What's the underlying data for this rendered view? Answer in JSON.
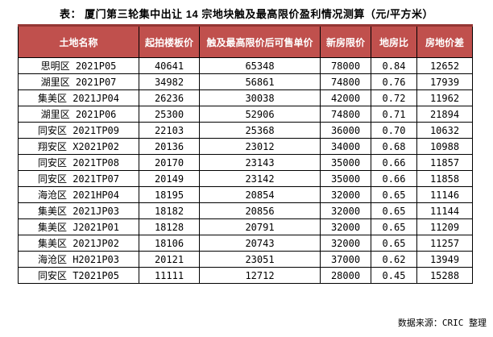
{
  "colors": {
    "header_bg": "#c0504d",
    "header_text": "#ffffff",
    "table_top_border": "#943634",
    "grid_border": "#000000",
    "text": "#000000"
  },
  "chart_data": {
    "type": "table",
    "title": "表： 厦门第三轮集中出让 14 宗地块触及最高限价盈利情况测算（元/平方米）",
    "unit": "元/平方米",
    "source": "数据来源：CRIC 整理",
    "columns": [
      "土地名称",
      "起拍楼板价",
      "触及最高限价后可售单价",
      "新房限价",
      "地房比",
      "房地价差"
    ],
    "rows": [
      [
        "思明区 2021P05",
        "40641",
        "65348",
        "78000",
        "0.84",
        "12652"
      ],
      [
        "湖里区 2021P07",
        "34982",
        "56861",
        "74800",
        "0.76",
        "17939"
      ],
      [
        "集美区 2021JP04",
        "26236",
        "30038",
        "42000",
        "0.72",
        "11962"
      ],
      [
        "湖里区 2021P06",
        "25300",
        "52906",
        "74800",
        "0.71",
        "21894"
      ],
      [
        "同安区 2021TP09",
        "22103",
        "25368",
        "36000",
        "0.70",
        "10632"
      ],
      [
        "翔安区 X2021P02",
        "20136",
        "23012",
        "34000",
        "0.68",
        "10988"
      ],
      [
        "同安区 2021TP08",
        "20170",
        "23143",
        "35000",
        "0.66",
        "11857"
      ],
      [
        "同安区 2021TP07",
        "20149",
        "23142",
        "35000",
        "0.66",
        "11858"
      ],
      [
        "海沧区 2021HP04",
        "18195",
        "20854",
        "32000",
        "0.65",
        "11146"
      ],
      [
        "集美区 2021JP03",
        "18182",
        "20856",
        "32000",
        "0.65",
        "11144"
      ],
      [
        "集美区 J2021P01",
        "18128",
        "20791",
        "32000",
        "0.65",
        "11209"
      ],
      [
        "集美区 2021JP02",
        "18106",
        "20743",
        "32000",
        "0.65",
        "11257"
      ],
      [
        "海沧区 H2021P03",
        "20121",
        "23051",
        "37000",
        "0.62",
        "13949"
      ],
      [
        "同安区 T2021P05",
        "11111",
        "12712",
        "28000",
        "0.45",
        "15288"
      ]
    ]
  }
}
